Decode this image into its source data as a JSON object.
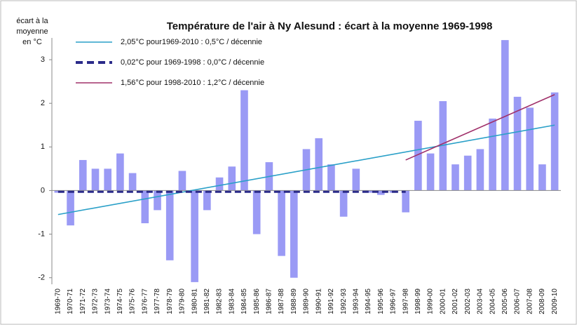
{
  "chart_data": {
    "type": "bar",
    "title": "Température de l'air à Ny Alesund : écart à la moyenne 1969-1998",
    "ylabel": [
      "écart à la",
      "moyenne",
      "en °C"
    ],
    "categories": [
      "1969-70",
      "1970-71",
      "1971-72",
      "1972-73",
      "1973-74",
      "1974-75",
      "1975-76",
      "1976-77",
      "1977-78",
      "1978-79",
      "1979-80",
      "1980-81",
      "1981-82",
      "1982-83",
      "1983-84",
      "1984-85",
      "1985-86",
      "1986-87",
      "1987-88",
      "1988-89",
      "1989-90",
      "1990-91",
      "1991-92",
      "1992-93",
      "1993-94",
      "1994-95",
      "1995-96",
      "1996-97",
      "1997-98",
      "1998-99",
      "1999-00",
      "2000-01",
      "2001-02",
      "2002-03",
      "2003-04",
      "2004-05",
      "2005-06",
      "2006-07",
      "2007-08",
      "2008-09",
      "2009-10"
    ],
    "values": [
      -0.05,
      -0.8,
      0.7,
      0.5,
      0.5,
      0.85,
      0.4,
      -0.75,
      -0.45,
      -1.6,
      0.45,
      -2.1,
      -0.45,
      0.3,
      0.55,
      2.3,
      -1.0,
      0.65,
      -1.5,
      -2.0,
      0.95,
      1.2,
      0.6,
      -0.6,
      0.5,
      -0.05,
      -0.1,
      -0.05,
      -0.5,
      1.6,
      0.85,
      2.05,
      0.6,
      0.8,
      0.95,
      1.65,
      3.45,
      2.15,
      1.9,
      0.6,
      2.25
    ],
    "color": "#9a9af5",
    "trends": [
      {
        "name": "2,05°C pour1969-2010 : 0,5°C / décennie",
        "color": "#2aa0c8",
        "dash": false,
        "x": [
          "1969-70",
          "2009-10"
        ],
        "values": [
          -0.55,
          1.5
        ]
      },
      {
        "name": "0,02°C pour 1969-1998 : 0,0°C / décennie",
        "color": "#2b2b8a",
        "dash": true,
        "x": [
          "1969-70",
          "1997-98"
        ],
        "values": [
          -0.03,
          -0.03
        ]
      },
      {
        "name": "1,56°C pour 1998-2010 : 1,2°C / décennie",
        "color": "#a0306a",
        "dash": false,
        "x": [
          "1997-98",
          "2009-10"
        ],
        "values": [
          0.7,
          2.2
        ]
      }
    ],
    "ylim": [
      -2.15,
      3.5
    ],
    "yticks": [
      -2,
      -1,
      0,
      1,
      2,
      3
    ],
    "grid": false
  }
}
